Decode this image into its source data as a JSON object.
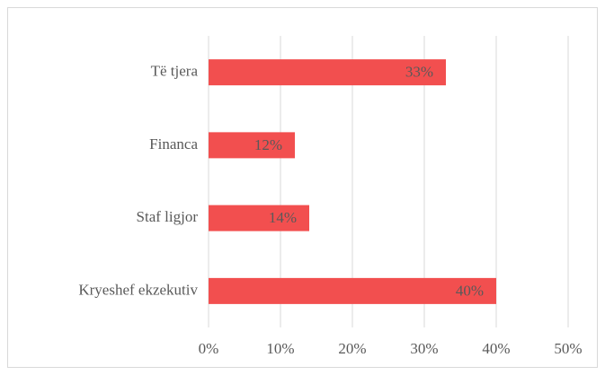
{
  "chart_data": {
    "type": "hbar",
    "categories": [
      "Të tjera",
      "Financa",
      "Staf ligjor",
      "Kryeshef ekzekutiv"
    ],
    "values": [
      33,
      12,
      14,
      40
    ],
    "value_labels": [
      "33%",
      "12%",
      "14%",
      "40%"
    ],
    "color": "#f24f4f",
    "xlim": [
      0,
      50
    ],
    "xticks": [
      {
        "value": 0,
        "label": "0%"
      },
      {
        "value": 10,
        "label": "10%"
      },
      {
        "value": 20,
        "label": "20%"
      },
      {
        "value": 30,
        "label": "30%"
      },
      {
        "value": 40,
        "label": "40%"
      },
      {
        "value": 50,
        "label": "50%"
      }
    ],
    "grid": true
  }
}
